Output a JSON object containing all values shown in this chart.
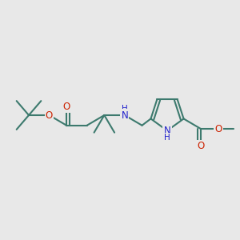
{
  "bg_color": "#e8e8e8",
  "bond_color": "#3d7a6e",
  "o_color": "#cc2200",
  "n_color": "#2222cc",
  "bond_width": 1.5,
  "figsize": [
    3.0,
    3.0
  ],
  "dpi": 100,
  "xlim": [
    0,
    10
  ],
  "ylim": [
    0,
    10
  ]
}
